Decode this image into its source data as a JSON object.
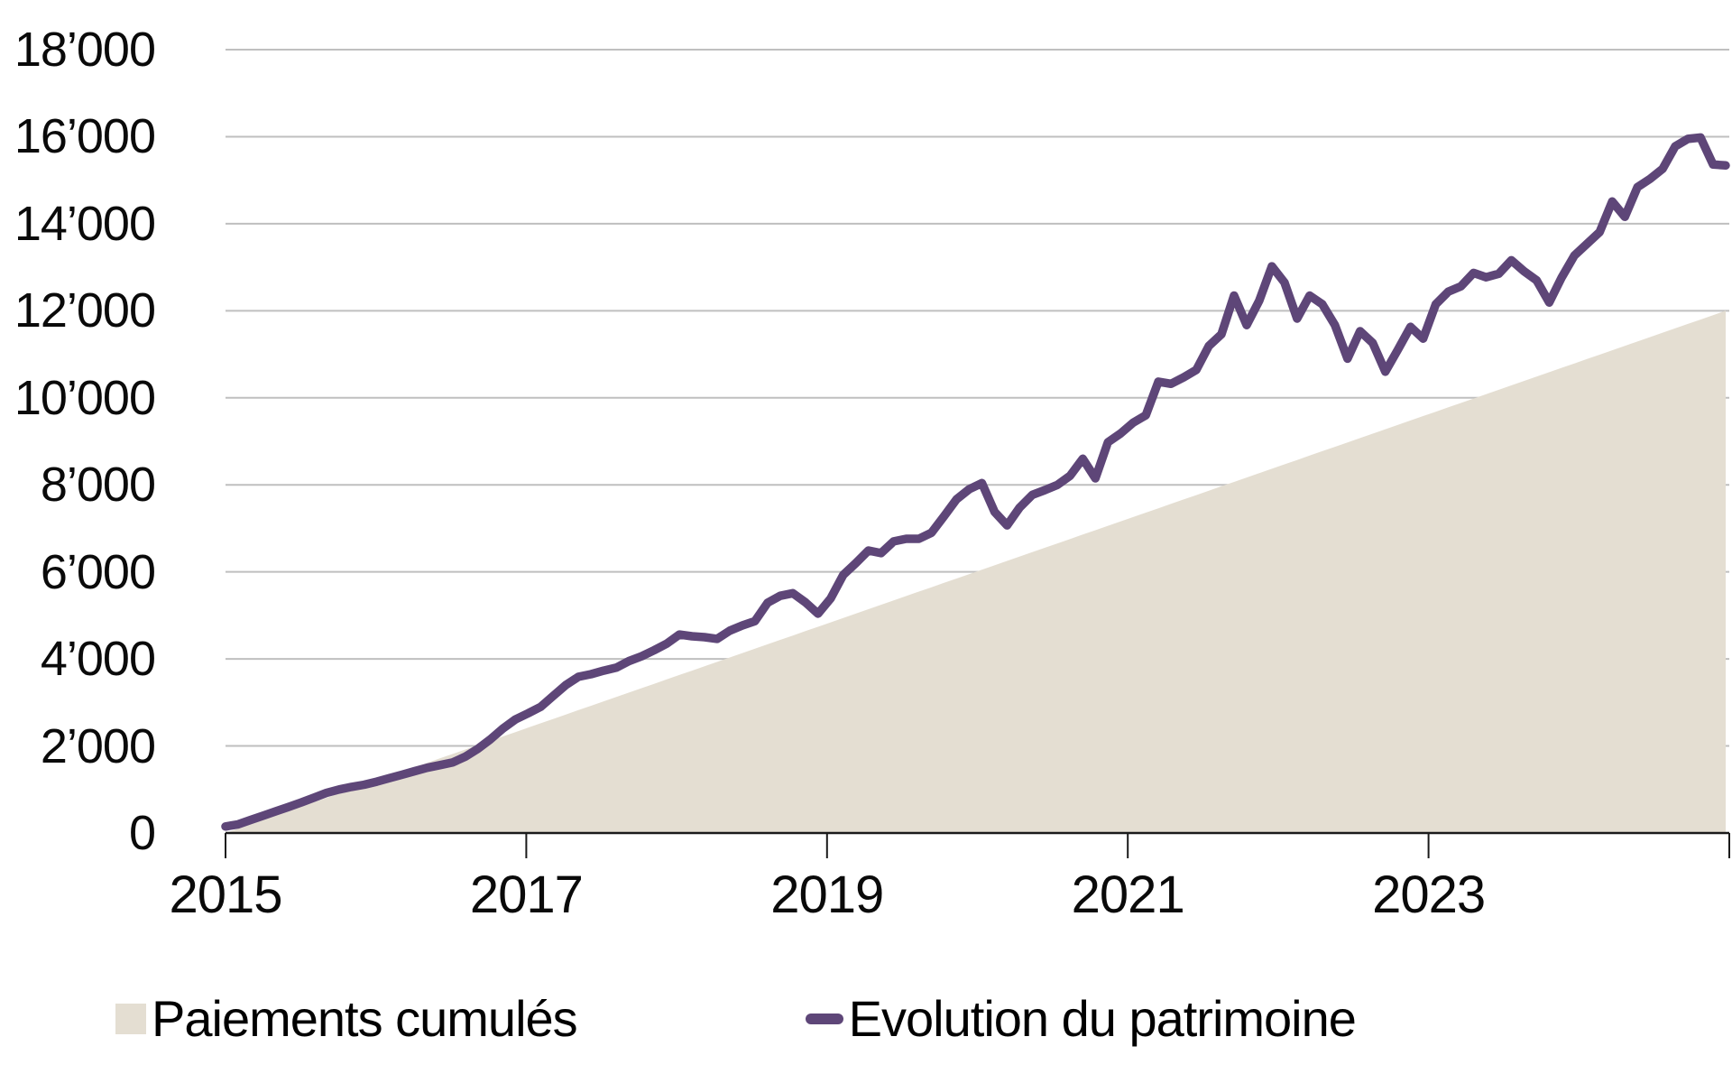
{
  "chart_data": {
    "type": "area+line",
    "title": "",
    "frequency": "monthly",
    "x_start_label": "2015-01",
    "x_end_label": "2024-12",
    "x_axis": {
      "tick_labels": [
        "2015",
        "2017",
        "2019",
        "2021",
        "2023"
      ],
      "tick_years": [
        2015,
        2017,
        2019,
        2021,
        2023
      ],
      "range_years": [
        2015,
        2025
      ],
      "has_extra_unlabeled_end_tick": true
    },
    "y_axis": {
      "tick_labels": [
        "0",
        "2’000",
        "4’000",
        "6’000",
        "8’000",
        "10’000",
        "12’000",
        "14’000",
        "16’000",
        "18’000"
      ],
      "tick_values": [
        0,
        2000,
        4000,
        6000,
        8000,
        10000,
        12000,
        14000,
        16000,
        18000
      ],
      "range": [
        0,
        18000
      ],
      "grid": true
    },
    "legend_position": "bottom",
    "series": [
      {
        "name": "Paiements cumulés",
        "type": "area",
        "shape": "linear-ramp",
        "start_value": 0,
        "end_value": 12000,
        "color": "#e4ded2"
      },
      {
        "name": "Evolution du patrimoine",
        "type": "line",
        "color": "#5e4678",
        "values": [
          150,
          200,
          300,
          400,
          500,
          600,
          700,
          810,
          920,
          1000,
          1060,
          1110,
          1180,
          1260,
          1340,
          1420,
          1500,
          1560,
          1620,
          1750,
          1930,
          2150,
          2400,
          2610,
          2750,
          2900,
          3150,
          3400,
          3590,
          3650,
          3730,
          3800,
          3950,
          4060,
          4200,
          4350,
          4560,
          4520,
          4500,
          4460,
          4650,
          4770,
          4870,
          5290,
          5450,
          5510,
          5300,
          5040,
          5390,
          5930,
          6200,
          6490,
          6430,
          6700,
          6760,
          6760,
          6900,
          7280,
          7670,
          7900,
          8040,
          7380,
          7070,
          7480,
          7770,
          7880,
          8000,
          8210,
          8600,
          8150,
          8980,
          9180,
          9430,
          9600,
          10370,
          10320,
          10470,
          10640,
          11190,
          11460,
          12350,
          11670,
          12230,
          13020,
          12650,
          11820,
          12350,
          12150,
          11670,
          10900,
          11530,
          11260,
          10600,
          11110,
          11630,
          11360,
          12150,
          12440,
          12560,
          12870,
          12770,
          12850,
          13160,
          12910,
          12700,
          12190,
          12770,
          13270,
          13540,
          13810,
          14510,
          14160,
          14840,
          15030,
          15260,
          15780,
          15950,
          15980,
          15360,
          15340
        ]
      }
    ],
    "colors": {
      "grid": "#bfbfbf",
      "axis": "#1a1a1a",
      "text": "#000000",
      "background": "#ffffff"
    }
  }
}
